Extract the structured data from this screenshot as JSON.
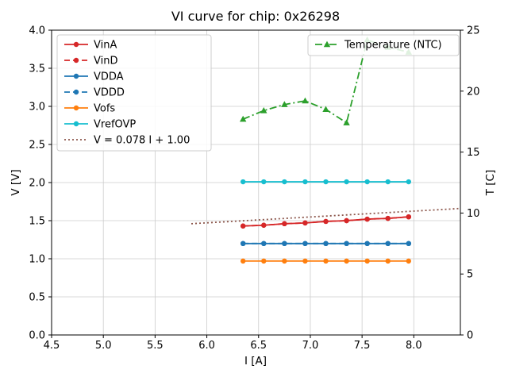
{
  "chart_data": {
    "type": "line",
    "title": "VI curve for chip: 0x26298",
    "xlabel": "I [A]",
    "ylabel_left": "V [V]",
    "ylabel_right": "T [C]",
    "xlim": [
      4.5,
      8.45
    ],
    "ylim_left": [
      0.0,
      4.0
    ],
    "ylim_right": [
      0,
      25
    ],
    "grid": true,
    "legend_left_loc": "upper left",
    "legend_right_loc": "upper right",
    "xticks": {
      "values": [
        4.5,
        5.0,
        5.5,
        6.0,
        6.5,
        7.0,
        7.5,
        8.0
      ],
      "labels": [
        "4.5",
        "5.0",
        "5.5",
        "6.0",
        "6.5",
        "7.0",
        "7.5",
        "8.0"
      ]
    },
    "yticks_left": {
      "values": [
        0.0,
        0.5,
        1.0,
        1.5,
        2.0,
        2.5,
        3.0,
        3.5,
        4.0
      ],
      "labels": [
        "0.0",
        "0.5",
        "1.0",
        "1.5",
        "2.0",
        "2.5",
        "3.0",
        "3.5",
        "4.0"
      ]
    },
    "yticks_right": {
      "values": [
        0,
        5,
        10,
        15,
        20,
        25
      ],
      "labels": [
        "0",
        "5",
        "10",
        "15",
        "20",
        "25"
      ]
    },
    "x": [
      6.35,
      6.55,
      6.75,
      6.95,
      7.15,
      7.35,
      7.55,
      7.75,
      7.95
    ],
    "series": [
      {
        "name": "VinA",
        "axis": "left",
        "legend": "left",
        "color": "#d62728",
        "linestyle": "solid",
        "marker": "circle",
        "values": [
          1.43,
          1.44,
          1.46,
          1.47,
          1.49,
          1.5,
          1.52,
          1.53,
          1.55
        ]
      },
      {
        "name": "VinD",
        "axis": "left",
        "legend": "left",
        "color": "#d62728",
        "linestyle": "dashed",
        "marker": "circle",
        "values": [
          1.43,
          1.44,
          1.46,
          1.47,
          1.49,
          1.5,
          1.52,
          1.53,
          1.55
        ]
      },
      {
        "name": "VDDA",
        "axis": "left",
        "legend": "left",
        "color": "#1f77b4",
        "linestyle": "solid",
        "marker": "circle",
        "values": [
          1.2,
          1.2,
          1.2,
          1.2,
          1.2,
          1.2,
          1.2,
          1.2,
          1.2
        ]
      },
      {
        "name": "VDDD",
        "axis": "left",
        "legend": "left",
        "color": "#1f77b4",
        "linestyle": "dashed",
        "marker": "circle",
        "values": [
          1.2,
          1.2,
          1.2,
          1.2,
          1.2,
          1.2,
          1.2,
          1.2,
          1.2
        ]
      },
      {
        "name": "Vofs",
        "axis": "left",
        "legend": "left",
        "color": "#ff7f0e",
        "linestyle": "solid",
        "marker": "circle",
        "values": [
          0.97,
          0.97,
          0.97,
          0.97,
          0.97,
          0.97,
          0.97,
          0.97,
          0.97
        ]
      },
      {
        "name": "VrefOVP",
        "axis": "left",
        "legend": "left",
        "color": "#17becf",
        "linestyle": "solid",
        "marker": "circle",
        "values": [
          2.01,
          2.01,
          2.01,
          2.01,
          2.01,
          2.01,
          2.01,
          2.01,
          2.01
        ]
      },
      {
        "name": "V = 0.078 I + 1.00",
        "axis": "left",
        "legend": "left",
        "color": "#8c564b",
        "linestyle": "dotted",
        "marker": "none",
        "equation": {
          "slope": 0.078,
          "intercept": 1.0
        },
        "x": [
          5.85,
          8.45
        ],
        "values": [
          1.46,
          1.66
        ]
      },
      {
        "name": "Temperature (NTC)",
        "axis": "right",
        "legend": "right",
        "color": "#2ca02c",
        "linestyle": "dashdot",
        "marker": "triangle",
        "values": [
          17.7,
          18.4,
          18.9,
          19.2,
          18.5,
          17.4,
          24.2,
          23.6,
          23.2
        ]
      }
    ]
  }
}
